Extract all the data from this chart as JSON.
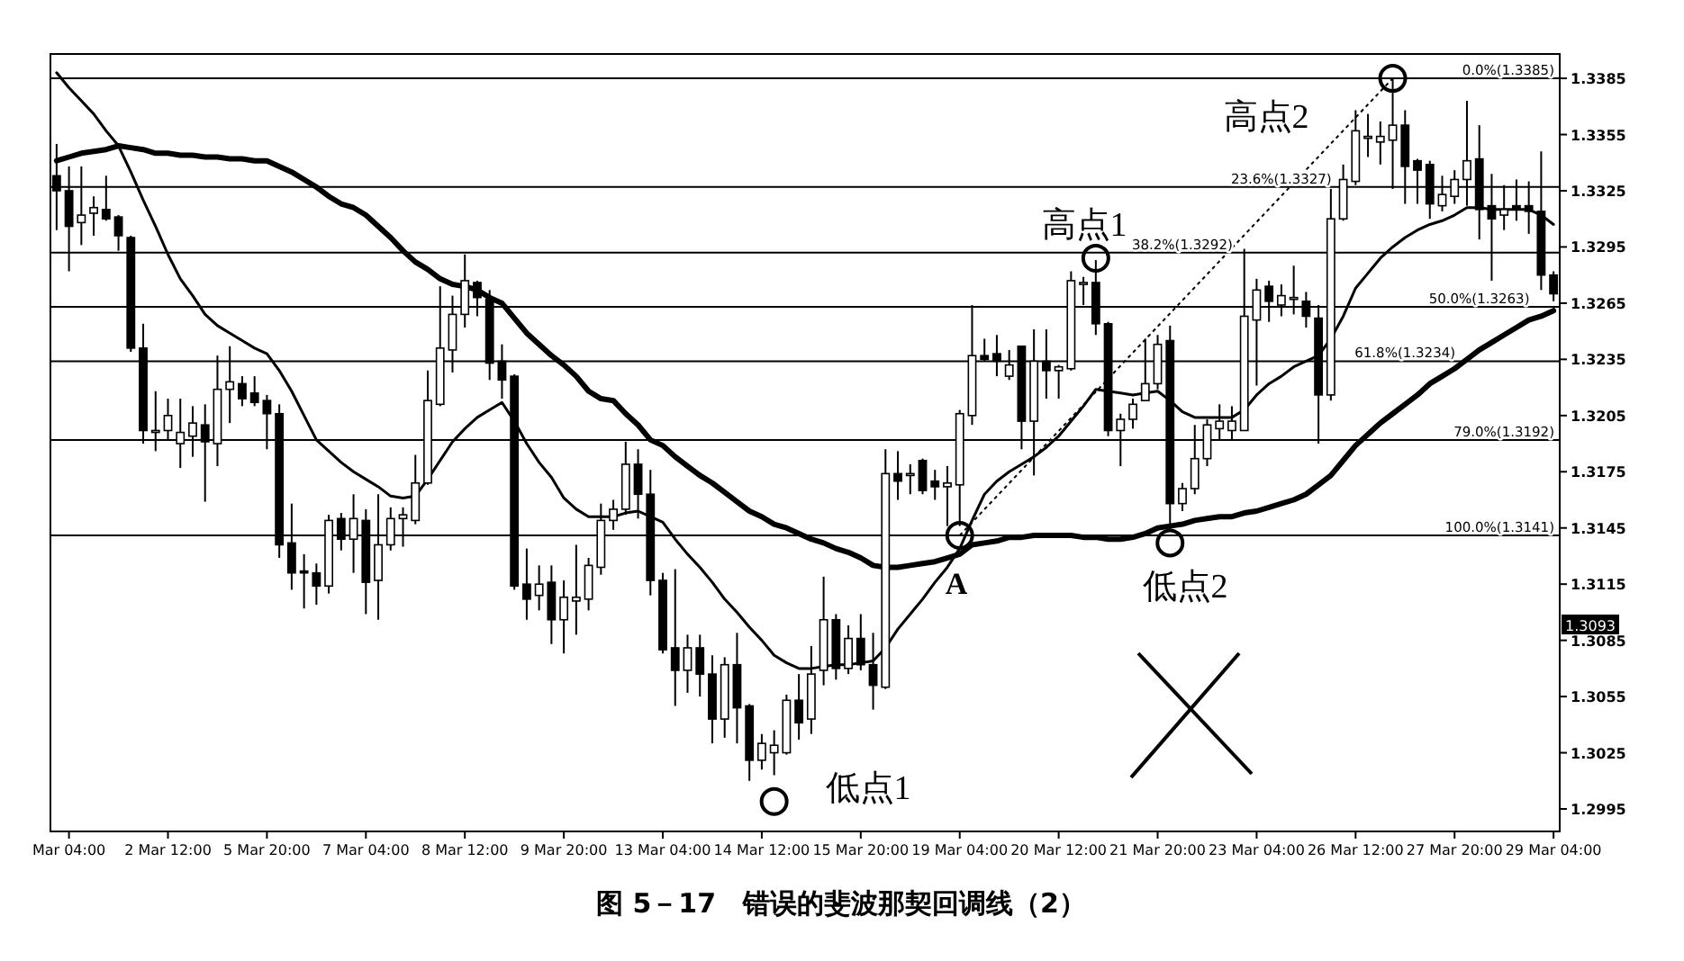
{
  "chart_data": {
    "type": "candlestick",
    "title": "图 5－17　错误的斐波那契回调线（2）",
    "color": "#000000",
    "categories": [
      null,
      "Mar 04:00",
      null,
      null,
      null,
      null,
      null,
      null,
      null,
      "2 Mar 12:00",
      null,
      null,
      null,
      null,
      null,
      null,
      null,
      "5 Mar 20:00",
      null,
      null,
      null,
      null,
      null,
      null,
      null,
      "7 Mar 04:00",
      null,
      null,
      null,
      null,
      null,
      null,
      null,
      "8 Mar 12:00",
      null,
      null,
      null,
      null,
      null,
      null,
      null,
      "9 Mar 20:00",
      null,
      null,
      null,
      null,
      null,
      null,
      null,
      "13 Mar 04:00",
      null,
      null,
      null,
      null,
      null,
      null,
      null,
      "14 Mar 12:00",
      null,
      null,
      null,
      null,
      null,
      null,
      null,
      "15 Mar 20:00",
      null,
      null,
      null,
      null,
      null,
      null,
      null,
      "19 Mar 04:00",
      null,
      null,
      null,
      null,
      null,
      null,
      null,
      "20 Mar 12:00",
      null,
      null,
      null,
      null,
      null,
      null,
      null,
      "21 Mar 20:00",
      null,
      null,
      null,
      null,
      null,
      null,
      null,
      "23 Mar 04:00",
      null,
      null,
      null,
      null,
      null,
      null,
      null,
      "26 Mar 12:00",
      null,
      null,
      null,
      null,
      null,
      null,
      null,
      "27 Mar 20:00",
      null,
      null,
      null,
      null,
      null,
      null,
      null,
      "29 Mar 04:00"
    ],
    "ohlc": [
      [
        1.3333,
        1.335,
        1.3304,
        1.3325
      ],
      [
        1.3325,
        1.3338,
        1.3282,
        1.3306
      ],
      [
        1.3308,
        1.3338,
        1.3296,
        1.3312
      ],
      [
        1.3313,
        1.3322,
        1.3301,
        1.3316
      ],
      [
        1.3315,
        1.3333,
        1.3309,
        1.331
      ],
      [
        1.3311,
        1.3312,
        1.3293,
        1.3301
      ],
      [
        1.33,
        1.3301,
        1.3239,
        1.3241
      ],
      [
        1.3241,
        1.3254,
        1.319,
        1.3197
      ],
      [
        1.3196,
        1.3218,
        1.3186,
        1.3197
      ],
      [
        1.3197,
        1.3214,
        1.3192,
        1.3205
      ],
      [
        1.319,
        1.3214,
        1.3177,
        1.3196
      ],
      [
        1.3194,
        1.321,
        1.3183,
        1.3201
      ],
      [
        1.32,
        1.3211,
        1.3159,
        1.3191
      ],
      [
        1.319,
        1.3237,
        1.3178,
        1.3219
      ],
      [
        1.3219,
        1.3242,
        1.3201,
        1.3223
      ],
      [
        1.3222,
        1.3226,
        1.321,
        1.3214
      ],
      [
        1.3217,
        1.3226,
        1.321,
        1.3212
      ],
      [
        1.3213,
        1.3216,
        1.3187,
        1.3206
      ],
      [
        1.3206,
        1.3211,
        1.3129,
        1.3136
      ],
      [
        1.3137,
        1.3158,
        1.3112,
        1.3121
      ],
      [
        1.3122,
        1.3131,
        1.3102,
        1.3121
      ],
      [
        1.3121,
        1.3126,
        1.3104,
        1.3114
      ],
      [
        1.3114,
        1.3152,
        1.311,
        1.3149
      ],
      [
        1.315,
        1.3153,
        1.3133,
        1.3139
      ],
      [
        1.3139,
        1.3163,
        1.3121,
        1.315
      ],
      [
        1.3149,
        1.3155,
        1.3099,
        1.3116
      ],
      [
        1.3117,
        1.3163,
        1.3096,
        1.3136
      ],
      [
        1.3136,
        1.3156,
        1.3133,
        1.315
      ],
      [
        1.315,
        1.3156,
        1.3135,
        1.3152
      ],
      [
        1.3149,
        1.3184,
        1.3147,
        1.3169
      ],
      [
        1.3169,
        1.3229,
        1.3168,
        1.3213
      ],
      [
        1.3211,
        1.3274,
        1.321,
        1.3241
      ],
      [
        1.324,
        1.3269,
        1.3228,
        1.3259
      ],
      [
        1.3259,
        1.3291,
        1.3252,
        1.3277
      ],
      [
        1.3276,
        1.3277,
        1.3258,
        1.3268
      ],
      [
        1.3267,
        1.3272,
        1.3224,
        1.3233
      ],
      [
        1.3234,
        1.3243,
        1.3214,
        1.3224
      ],
      [
        1.3226,
        1.3227,
        1.3112,
        1.3114
      ],
      [
        1.3115,
        1.3134,
        1.3096,
        1.3107
      ],
      [
        1.3109,
        1.3125,
        1.3101,
        1.3115
      ],
      [
        1.3116,
        1.3125,
        1.3083,
        1.3096
      ],
      [
        1.3096,
        1.3117,
        1.3078,
        1.3108
      ],
      [
        1.3106,
        1.3136,
        1.3088,
        1.3108
      ],
      [
        1.3107,
        1.3129,
        1.3101,
        1.3125
      ],
      [
        1.3124,
        1.3158,
        1.312,
        1.3149
      ],
      [
        1.3149,
        1.316,
        1.3144,
        1.3155
      ],
      [
        1.3155,
        1.3191,
        1.3152,
        1.3179
      ],
      [
        1.3179,
        1.3187,
        1.315,
        1.3163
      ],
      [
        1.3163,
        1.3176,
        1.3109,
        1.3117
      ],
      [
        1.3117,
        1.3121,
        1.3078,
        1.308
      ],
      [
        1.3081,
        1.3123,
        1.305,
        1.3069
      ],
      [
        1.3069,
        1.3088,
        1.3057,
        1.3081
      ],
      [
        1.3081,
        1.3088,
        1.3055,
        1.3067
      ],
      [
        1.3067,
        1.3077,
        1.303,
        1.3043
      ],
      [
        1.3043,
        1.3076,
        1.3033,
        1.3072
      ],
      [
        1.3072,
        1.3089,
        1.303,
        1.3049
      ],
      [
        1.305,
        1.3051,
        1.301,
        1.3021
      ],
      [
        1.3021,
        1.3035,
        1.3016,
        1.303
      ],
      [
        1.3025,
        1.3037,
        1.3013,
        1.3029
      ],
      [
        1.3025,
        1.3056,
        1.3024,
        1.3053
      ],
      [
        1.3053,
        1.3067,
        1.3032,
        1.3041
      ],
      [
        1.3043,
        1.3082,
        1.3035,
        1.3067
      ],
      [
        1.3069,
        1.3119,
        1.3061,
        1.3096
      ],
      [
        1.3096,
        1.3099,
        1.3064,
        1.307
      ],
      [
        1.307,
        1.3093,
        1.3067,
        1.3086
      ],
      [
        1.3086,
        1.3099,
        1.3069,
        1.3072
      ],
      [
        1.3072,
        1.3089,
        1.3048,
        1.3061
      ],
      [
        1.306,
        1.3187,
        1.3059,
        1.3174
      ],
      [
        1.3174,
        1.3186,
        1.316,
        1.317
      ],
      [
        1.3173,
        1.3179,
        1.3163,
        1.3174
      ],
      [
        1.3181,
        1.3182,
        1.3163,
        1.3165
      ],
      [
        1.317,
        1.3176,
        1.316,
        1.3167
      ],
      [
        1.3167,
        1.3178,
        1.3146,
        1.3169
      ],
      [
        1.3168,
        1.3208,
        1.3146,
        1.3206
      ],
      [
        1.3205,
        1.3264,
        1.32,
        1.3237
      ],
      [
        1.3237,
        1.3246,
        1.3234,
        1.3235
      ],
      [
        1.3238,
        1.3248,
        1.3226,
        1.3234
      ],
      [
        1.3226,
        1.324,
        1.3224,
        1.3232
      ],
      [
        1.3242,
        1.3242,
        1.3187,
        1.3202
      ],
      [
        1.3202,
        1.3251,
        1.3173,
        1.3234
      ],
      [
        1.3234,
        1.3251,
        1.3214,
        1.3229
      ],
      [
        1.3229,
        1.3232,
        1.3214,
        1.3231
      ],
      [
        1.323,
        1.3282,
        1.3229,
        1.3277
      ],
      [
        1.3275,
        1.3279,
        1.3264,
        1.3276
      ],
      [
        1.3276,
        1.3288,
        1.3248,
        1.3254
      ],
      [
        1.3254,
        1.3255,
        1.3194,
        1.3197
      ],
      [
        1.3197,
        1.3206,
        1.3178,
        1.3203
      ],
      [
        1.3203,
        1.3214,
        1.3198,
        1.3211
      ],
      [
        1.3213,
        1.3246,
        1.3213,
        1.3222
      ],
      [
        1.3222,
        1.3248,
        1.3219,
        1.3243
      ],
      [
        1.3245,
        1.3253,
        1.3144,
        1.3158
      ],
      [
        1.3158,
        1.3169,
        1.3154,
        1.3166
      ],
      [
        1.3166,
        1.32,
        1.3163,
        1.3182
      ],
      [
        1.3182,
        1.3203,
        1.3178,
        1.32
      ],
      [
        1.3198,
        1.3211,
        1.3192,
        1.3202
      ],
      [
        1.3197,
        1.321,
        1.3192,
        1.3202
      ],
      [
        1.3197,
        1.3294,
        1.3197,
        1.3258
      ],
      [
        1.3256,
        1.3278,
        1.3221,
        1.3272
      ],
      [
        1.3274,
        1.3277,
        1.3255,
        1.3266
      ],
      [
        1.3264,
        1.3275,
        1.3258,
        1.3269
      ],
      [
        1.3267,
        1.3285,
        1.3259,
        1.3268
      ],
      [
        1.3266,
        1.3271,
        1.3252,
        1.3258
      ],
      [
        1.3257,
        1.3264,
        1.319,
        1.3216
      ],
      [
        1.3216,
        1.3326,
        1.3213,
        1.331
      ],
      [
        1.331,
        1.3339,
        1.3309,
        1.3331
      ],
      [
        1.333,
        1.3368,
        1.3328,
        1.3357
      ],
      [
        1.3353,
        1.3366,
        1.3343,
        1.3354
      ],
      [
        1.3351,
        1.3362,
        1.3339,
        1.3354
      ],
      [
        1.3352,
        1.3385,
        1.3326,
        1.336
      ],
      [
        1.336,
        1.3368,
        1.3318,
        1.3338
      ],
      [
        1.3341,
        1.3342,
        1.3318,
        1.3336
      ],
      [
        1.3339,
        1.3341,
        1.331,
        1.3318
      ],
      [
        1.3317,
        1.3333,
        1.3314,
        1.3323
      ],
      [
        1.3322,
        1.3336,
        1.3318,
        1.3331
      ],
      [
        1.3331,
        1.3373,
        1.3317,
        1.3341
      ],
      [
        1.3342,
        1.336,
        1.3299,
        1.3315
      ],
      [
        1.3317,
        1.3334,
        1.3277,
        1.331
      ],
      [
        1.3312,
        1.3328,
        1.3304,
        1.3315
      ],
      [
        1.3317,
        1.3331,
        1.3309,
        1.3315
      ],
      [
        1.3317,
        1.333,
        1.3302,
        1.3314
      ],
      [
        1.3314,
        1.3346,
        1.3272,
        1.328
      ],
      [
        1.328,
        1.3282,
        1.3266,
        1.327
      ]
    ],
    "series": [
      {
        "type": "line",
        "color": "#000000",
        "values": [
          1.3388,
          1.338,
          1.3373,
          1.3366,
          1.3357,
          1.3349,
          1.3335,
          1.332,
          1.3306,
          1.3291,
          1.3278,
          1.3269,
          1.3259,
          1.3253,
          1.3249,
          1.3245,
          1.3241,
          1.3238,
          1.3229,
          1.3218,
          1.3205,
          1.3192,
          1.3186,
          1.318,
          1.3175,
          1.3171,
          1.3167,
          1.3162,
          1.3161,
          1.3162,
          1.3171,
          1.3181,
          1.3191,
          1.3198,
          1.3204,
          1.3208,
          1.3212,
          1.3202,
          1.319,
          1.318,
          1.3172,
          1.3161,
          1.3155,
          1.3151,
          1.3151,
          1.3151,
          1.3153,
          1.3154,
          1.3151,
          1.3148,
          1.3139,
          1.3131,
          1.3124,
          1.3116,
          1.3107,
          1.31,
          1.3092,
          1.3085,
          1.3077,
          1.3073,
          1.307,
          1.307,
          1.3071,
          1.3072,
          1.3072,
          1.3073,
          1.3074,
          1.3081,
          1.3091,
          1.3099,
          1.3107,
          1.3116,
          1.3124,
          1.3134,
          1.3149,
          1.3163,
          1.317,
          1.3175,
          1.3179,
          1.3183,
          1.3188,
          1.3194,
          1.3202,
          1.321,
          1.3219,
          1.3218,
          1.3217,
          1.3216,
          1.3217,
          1.3218,
          1.3213,
          1.3207,
          1.3204,
          1.3204,
          1.3204,
          1.3204,
          1.3208,
          1.3216,
          1.3222,
          1.3226,
          1.3231,
          1.3234,
          1.3237,
          1.3246,
          1.3258,
          1.3273,
          1.3281,
          1.3289,
          1.3295,
          1.33,
          1.3304,
          1.3307,
          1.3309,
          1.3312,
          1.3316,
          1.3316,
          1.3315,
          1.3315,
          1.3315,
          1.3315,
          1.3312,
          1.3307
        ]
      },
      {
        "type": "line",
        "color": "#000000",
        "values": [
          1.3341,
          1.3343,
          1.3345,
          1.3346,
          1.3347,
          1.3349,
          1.3348,
          1.3347,
          1.3345,
          1.3345,
          1.3344,
          1.3344,
          1.3343,
          1.3343,
          1.3342,
          1.3342,
          1.3341,
          1.3341,
          1.3338,
          1.3335,
          1.3331,
          1.3327,
          1.3322,
          1.3318,
          1.3316,
          1.3312,
          1.3306,
          1.33,
          1.3293,
          1.3287,
          1.3283,
          1.3278,
          1.3275,
          1.3274,
          1.3272,
          1.3268,
          1.3265,
          1.3257,
          1.3249,
          1.3243,
          1.3237,
          1.3232,
          1.3226,
          1.3218,
          1.3214,
          1.3213,
          1.3206,
          1.32,
          1.3192,
          1.3189,
          1.3183,
          1.3178,
          1.3173,
          1.3169,
          1.3164,
          1.3159,
          1.3154,
          1.3151,
          1.3147,
          1.3145,
          1.3142,
          1.3139,
          1.3137,
          1.3134,
          1.3132,
          1.3129,
          1.3125,
          1.3124,
          1.3124,
          1.3125,
          1.3126,
          1.3127,
          1.3129,
          1.3131,
          1.3136,
          1.3137,
          1.3138,
          1.314,
          1.314,
          1.3141,
          1.3141,
          1.3141,
          1.3141,
          1.314,
          1.314,
          1.3139,
          1.3139,
          1.314,
          1.3142,
          1.3145,
          1.3146,
          1.3147,
          1.3149,
          1.315,
          1.3151,
          1.3151,
          1.3153,
          1.3154,
          1.3156,
          1.3158,
          1.316,
          1.3163,
          1.3168,
          1.3173,
          1.3181,
          1.3189,
          1.3195,
          1.3201,
          1.3206,
          1.3211,
          1.3216,
          1.3222,
          1.3226,
          1.323,
          1.3235,
          1.324,
          1.3244,
          1.3248,
          1.3252,
          1.3256,
          1.3258,
          1.3261
        ]
      },
      {
        "type": "line",
        "color": "#000000",
        "line_style": "dotted",
        "marker": "circle",
        "values": [
          null,
          null,
          null,
          null,
          null,
          null,
          null,
          null,
          null,
          null,
          null,
          null,
          null,
          null,
          null,
          null,
          null,
          null,
          null,
          null,
          null,
          null,
          null,
          null,
          null,
          null,
          null,
          null,
          null,
          null,
          null,
          null,
          null,
          null,
          null,
          null,
          null,
          null,
          null,
          null,
          null,
          null,
          null,
          null,
          null,
          null,
          null,
          null,
          null,
          null,
          null,
          null,
          null,
          null,
          null,
          null,
          null,
          null,
          null,
          null,
          null,
          null,
          null,
          null,
          null,
          null,
          null,
          null,
          null,
          null,
          null,
          null,
          null,
          1.3141,
          null,
          null,
          null,
          null,
          null,
          null,
          null,
          null,
          null,
          null,
          null,
          null,
          null,
          null,
          null,
          null,
          null,
          null,
          null,
          null,
          null,
          null,
          null,
          null,
          null,
          null,
          null,
          null,
          null,
          null,
          null,
          null,
          null,
          null,
          1.3385,
          null,
          null,
          null,
          null,
          null,
          null,
          null,
          null,
          null,
          null,
          null,
          null,
          null
        ]
      },
      {
        "type": "scatter",
        "color": "#000000",
        "marker": "circle",
        "values": [
          null,
          null,
          null,
          null,
          null,
          null,
          null,
          null,
          null,
          null,
          null,
          null,
          null,
          null,
          null,
          null,
          null,
          null,
          null,
          null,
          null,
          null,
          null,
          null,
          null,
          null,
          null,
          null,
          null,
          null,
          null,
          null,
          null,
          null,
          null,
          null,
          null,
          null,
          null,
          null,
          null,
          null,
          null,
          null,
          null,
          null,
          null,
          null,
          null,
          null,
          null,
          null,
          null,
          null,
          null,
          null,
          null,
          null,
          1.2999,
          null,
          null,
          null,
          null,
          null,
          null,
          null,
          null,
          null,
          null,
          null,
          null,
          null,
          null,
          null,
          null,
          null,
          null,
          null,
          null,
          null,
          null,
          null,
          null,
          null,
          1.3289,
          null,
          null,
          null,
          null,
          null,
          1.3137,
          null,
          null,
          null,
          null,
          null,
          null,
          null,
          null,
          null,
          null,
          null,
          null,
          null,
          null,
          null,
          null,
          null,
          null,
          null,
          null,
          null,
          null,
          null,
          null,
          null,
          null,
          null,
          null,
          null,
          null,
          null
        ]
      }
    ],
    "ylim": [
      1.2983,
      1.3398
    ],
    "yticks": [
      1.2995,
      1.3025,
      1.3055,
      1.3085,
      1.3115,
      1.3145,
      1.3175,
      1.3205,
      1.3235,
      1.3265,
      1.3295,
      1.3325,
      1.3355,
      1.3385
    ],
    "ref_lines": [
      {
        "axis": "y",
        "value": 1.3385,
        "label": "0.0%(1.3385)",
        "color": "#000000"
      },
      {
        "axis": "y",
        "value": 1.3327,
        "label": "23.6%(1.3327)",
        "color": "#000000"
      },
      {
        "axis": "y",
        "value": 1.3292,
        "label": "38.2%(1.3292)",
        "color": "#000000"
      },
      {
        "axis": "y",
        "value": 1.3263,
        "label": "50.0%(1.3263)",
        "color": "#000000"
      },
      {
        "axis": "y",
        "value": 1.3234,
        "label": "61.8%(1.3234)",
        "color": "#000000"
      },
      {
        "axis": "y",
        "value": 1.3192,
        "label": "79.0%(1.3192)",
        "color": "#000000"
      },
      {
        "axis": "y",
        "value": 1.3141,
        "label": "100.0%(1.3141)",
        "color": "#000000"
      }
    ],
    "annotations": [
      "高点1",
      "高点2",
      "低点1",
      "低点2",
      "A",
      {
        "text": "1.3093",
        "y": 1.3093
      }
    ]
  }
}
